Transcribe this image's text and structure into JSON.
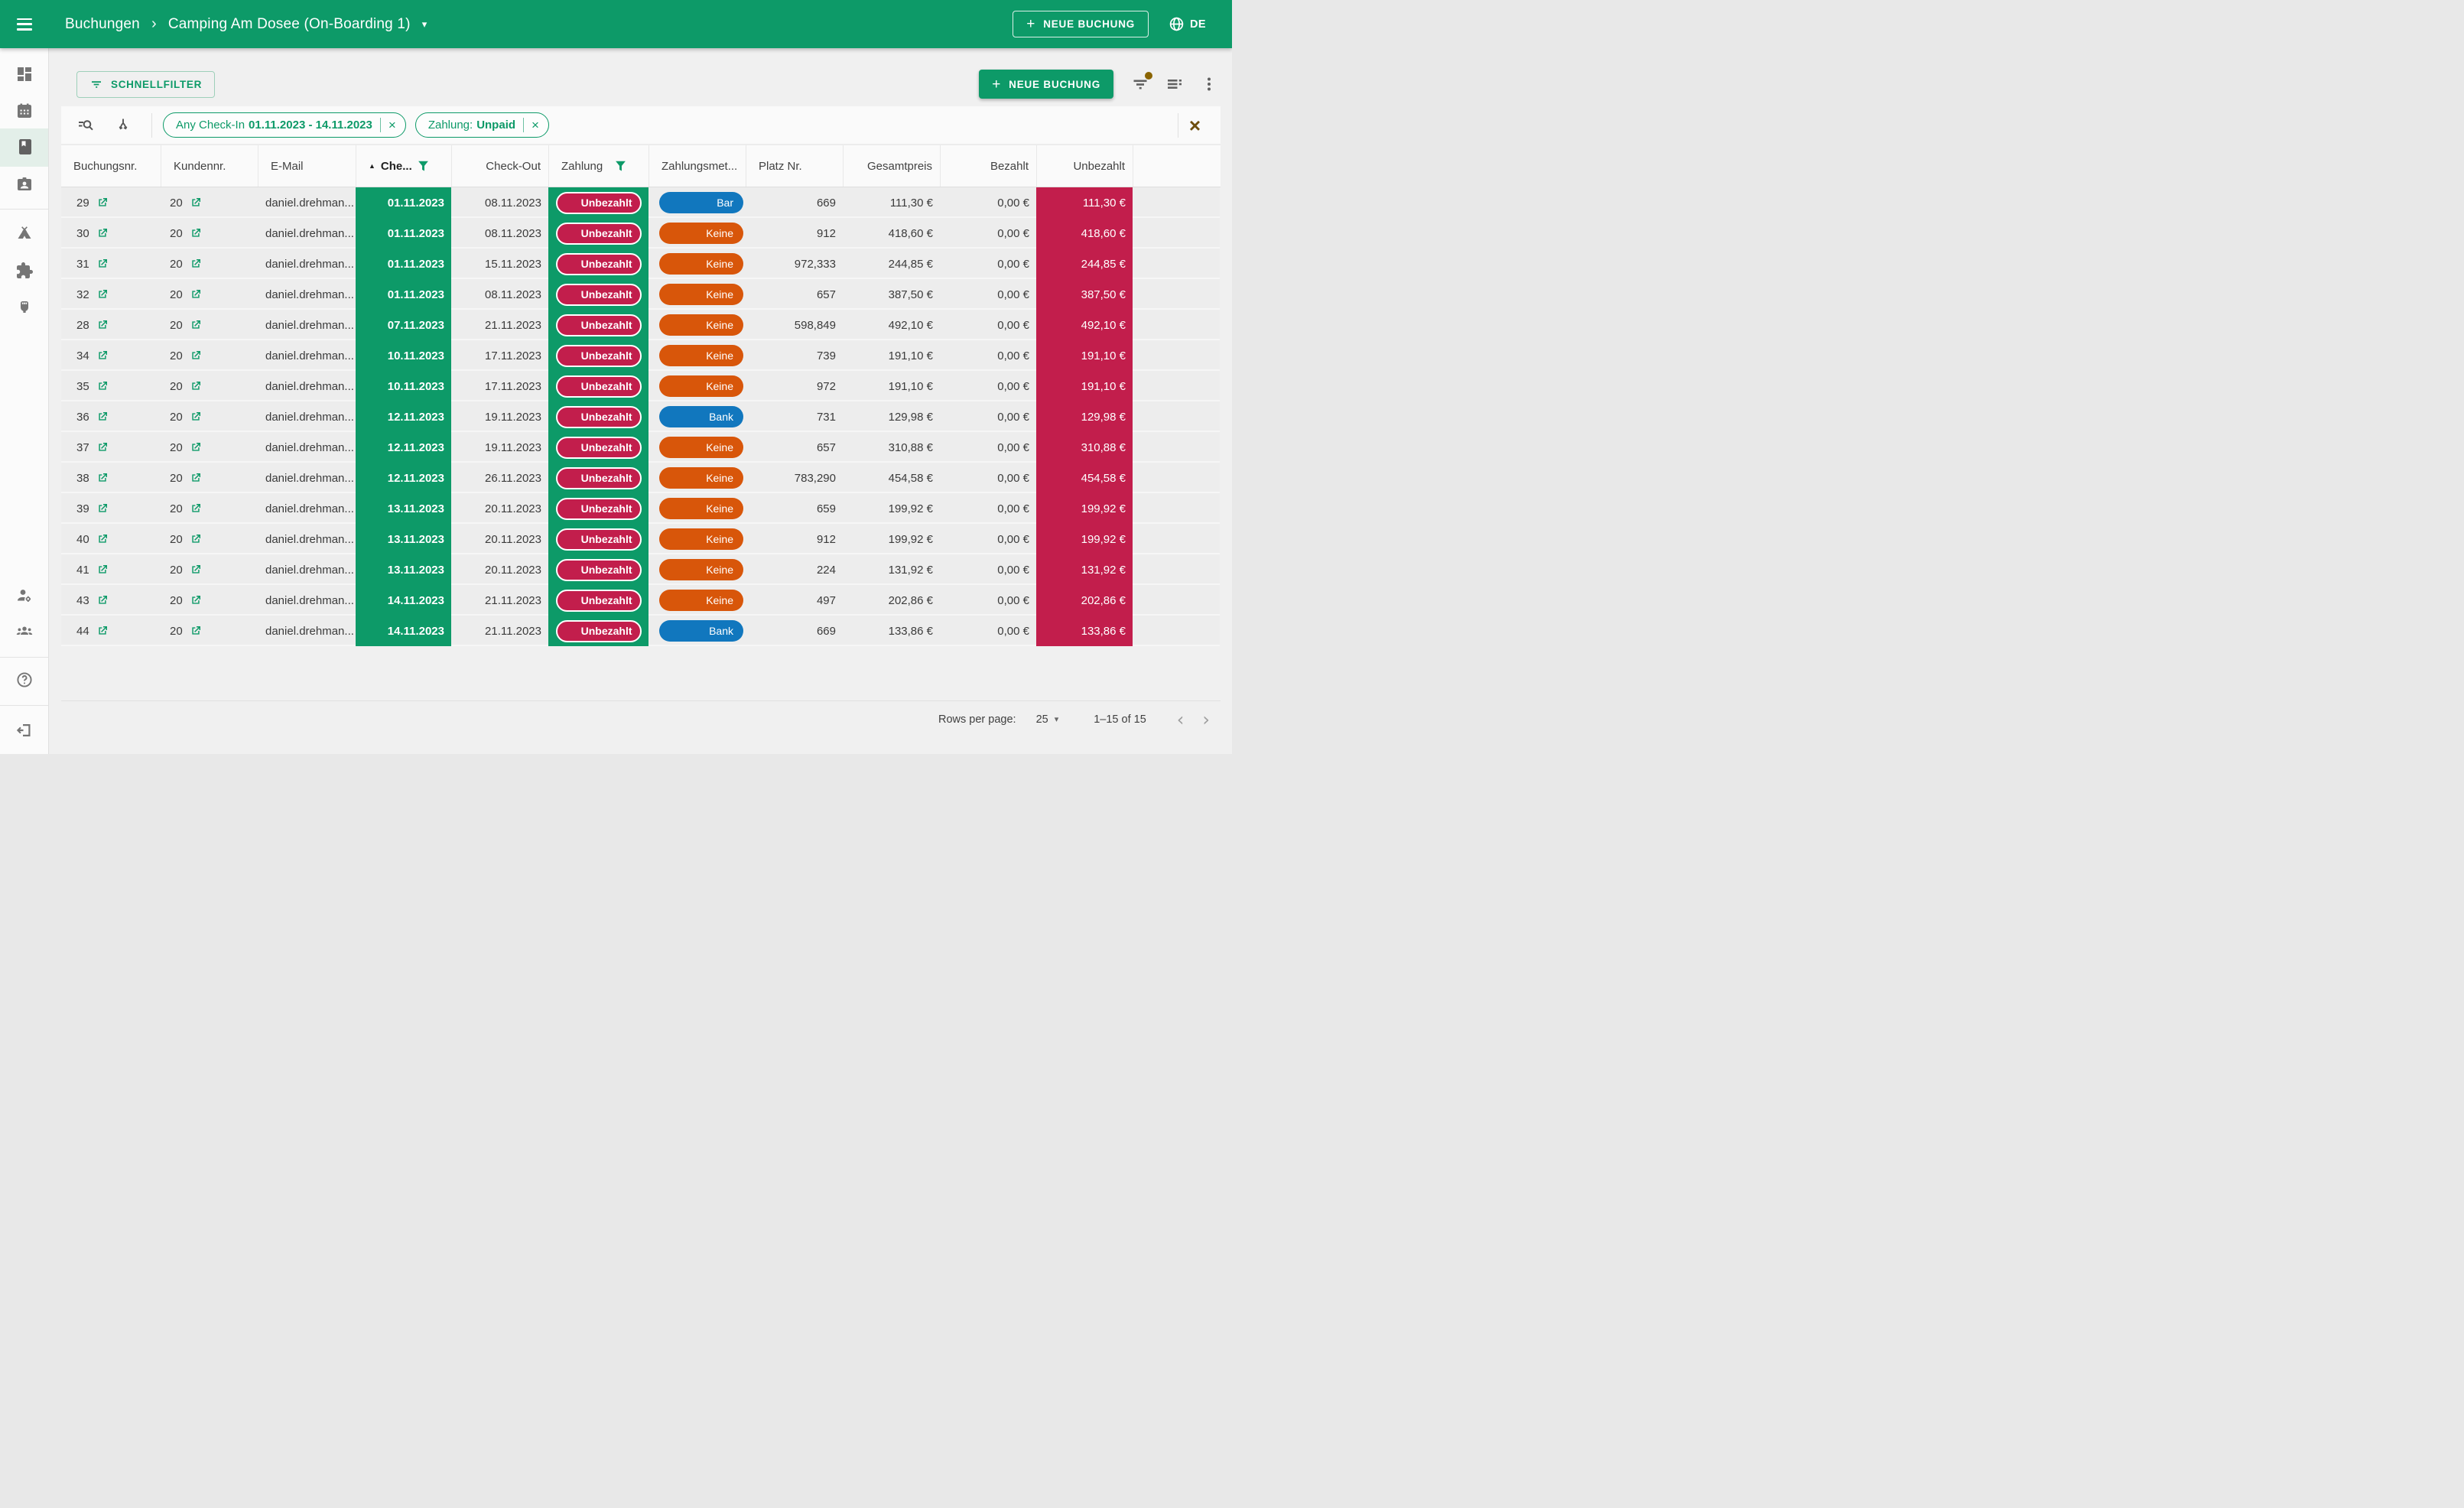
{
  "app_bar": {
    "breadcrumb": {
      "root": "Buchungen",
      "separator": "›",
      "current": "Camping Am Dosee (On-Boarding 1)",
      "caret": "▾"
    },
    "new_booking_label": "NEUE BUCHUNG",
    "plus": "+",
    "language": "DE"
  },
  "toolbar": {
    "quick_filter_label": "SCHNELLFILTER",
    "new_booking_label": "NEUE BUCHUNG",
    "plus": "+",
    "icons": [
      "filter-list-icon",
      "table-columns-icon",
      "kebab-menu-icon"
    ]
  },
  "filter_bar": {
    "icons": [
      "deep-search-icon",
      "group-split-icon"
    ],
    "chips": [
      {
        "label": "Any Check-In",
        "value": "01.11.2023 - 14.11.2023",
        "close": "×"
      },
      {
        "label": "Zahlung:",
        "value": "Unpaid",
        "close": "×"
      }
    ],
    "clear_all": "×"
  },
  "sidebar": {
    "items": [
      "dashboard-icon",
      "calendar-icon",
      "bookings-book-icon",
      "guests-contact-icon",
      "campsite-tent-icon",
      "integrations-puzzle-icon",
      "power-plug-icon",
      "account-settings-icon",
      "team-icon",
      "help-icon",
      "logout-icon"
    ],
    "active_item": "bookings-book-icon"
  },
  "table": {
    "headers": {
      "sort_arrow": "▲",
      "booking_no": "Buchungsnr.",
      "customer_no": "Kundennr.",
      "email": "E-Mail",
      "check_in": "Che...",
      "check_out": "Check-Out",
      "payment": "Zahlung",
      "payment_method": "Zahlungsmet...",
      "pitch_no": "Platz Nr.",
      "total": "Gesamtpreis",
      "paid": "Bezahlt",
      "unpaid": "Unbezahlt"
    },
    "rows": [
      {
        "booking_no": "29",
        "customer_no": "20",
        "email": "daniel.drehman...",
        "check_in": "01.11.2023",
        "check_out": "08.11.2023",
        "payment_status": "Unbezahlt",
        "payment_method": "Bar",
        "pitch_no": "669",
        "total": "111,30 €",
        "paid": "0,00 €",
        "unpaid": "111,30 €"
      },
      {
        "booking_no": "30",
        "customer_no": "20",
        "email": "daniel.drehman...",
        "check_in": "01.11.2023",
        "check_out": "08.11.2023",
        "payment_status": "Unbezahlt",
        "payment_method": "Keine",
        "pitch_no": "912",
        "total": "418,60 €",
        "paid": "0,00 €",
        "unpaid": "418,60 €"
      },
      {
        "booking_no": "31",
        "customer_no": "20",
        "email": "daniel.drehman...",
        "check_in": "01.11.2023",
        "check_out": "15.11.2023",
        "payment_status": "Unbezahlt",
        "payment_method": "Keine",
        "pitch_no": "972,333",
        "total": "244,85 €",
        "paid": "0,00 €",
        "unpaid": "244,85 €"
      },
      {
        "booking_no": "32",
        "customer_no": "20",
        "email": "daniel.drehman...",
        "check_in": "01.11.2023",
        "check_out": "08.11.2023",
        "payment_status": "Unbezahlt",
        "payment_method": "Keine",
        "pitch_no": "657",
        "total": "387,50 €",
        "paid": "0,00 €",
        "unpaid": "387,50 €"
      },
      {
        "booking_no": "28",
        "customer_no": "20",
        "email": "daniel.drehman...",
        "check_in": "07.11.2023",
        "check_out": "21.11.2023",
        "payment_status": "Unbezahlt",
        "payment_method": "Keine",
        "pitch_no": "598,849",
        "total": "492,10 €",
        "paid": "0,00 €",
        "unpaid": "492,10 €"
      },
      {
        "booking_no": "34",
        "customer_no": "20",
        "email": "daniel.drehman...",
        "check_in": "10.11.2023",
        "check_out": "17.11.2023",
        "payment_status": "Unbezahlt",
        "payment_method": "Keine",
        "pitch_no": "739",
        "total": "191,10 €",
        "paid": "0,00 €",
        "unpaid": "191,10 €"
      },
      {
        "booking_no": "35",
        "customer_no": "20",
        "email": "daniel.drehman...",
        "check_in": "10.11.2023",
        "check_out": "17.11.2023",
        "payment_status": "Unbezahlt",
        "payment_method": "Keine",
        "pitch_no": "972",
        "total": "191,10 €",
        "paid": "0,00 €",
        "unpaid": "191,10 €"
      },
      {
        "booking_no": "36",
        "customer_no": "20",
        "email": "daniel.drehman...",
        "check_in": "12.11.2023",
        "check_out": "19.11.2023",
        "payment_status": "Unbezahlt",
        "payment_method": "Bank",
        "pitch_no": "731",
        "total": "129,98 €",
        "paid": "0,00 €",
        "unpaid": "129,98 €"
      },
      {
        "booking_no": "37",
        "customer_no": "20",
        "email": "daniel.drehman...",
        "check_in": "12.11.2023",
        "check_out": "19.11.2023",
        "payment_status": "Unbezahlt",
        "payment_method": "Keine",
        "pitch_no": "657",
        "total": "310,88 €",
        "paid": "0,00 €",
        "unpaid": "310,88 €"
      },
      {
        "booking_no": "38",
        "customer_no": "20",
        "email": "daniel.drehman...",
        "check_in": "12.11.2023",
        "check_out": "26.11.2023",
        "payment_status": "Unbezahlt",
        "payment_method": "Keine",
        "pitch_no": "783,290",
        "total": "454,58 €",
        "paid": "0,00 €",
        "unpaid": "454,58 €"
      },
      {
        "booking_no": "39",
        "customer_no": "20",
        "email": "daniel.drehman...",
        "check_in": "13.11.2023",
        "check_out": "20.11.2023",
        "payment_status": "Unbezahlt",
        "payment_method": "Keine",
        "pitch_no": "659",
        "total": "199,92 €",
        "paid": "0,00 €",
        "unpaid": "199,92 €"
      },
      {
        "booking_no": "40",
        "customer_no": "20",
        "email": "daniel.drehman...",
        "check_in": "13.11.2023",
        "check_out": "20.11.2023",
        "payment_status": "Unbezahlt",
        "payment_method": "Keine",
        "pitch_no": "912",
        "total": "199,92 €",
        "paid": "0,00 €",
        "unpaid": "199,92 €"
      },
      {
        "booking_no": "41",
        "customer_no": "20",
        "email": "daniel.drehman...",
        "check_in": "13.11.2023",
        "check_out": "20.11.2023",
        "payment_status": "Unbezahlt",
        "payment_method": "Keine",
        "pitch_no": "224",
        "total": "131,92 €",
        "paid": "0,00 €",
        "unpaid": "131,92 €"
      },
      {
        "booking_no": "43",
        "customer_no": "20",
        "email": "daniel.drehman...",
        "check_in": "14.11.2023",
        "check_out": "21.11.2023",
        "payment_status": "Unbezahlt",
        "payment_method": "Keine",
        "pitch_no": "497",
        "total": "202,86 €",
        "paid": "0,00 €",
        "unpaid": "202,86 €"
      },
      {
        "booking_no": "44",
        "customer_no": "20",
        "email": "daniel.drehman...",
        "check_in": "14.11.2023",
        "check_out": "21.11.2023",
        "payment_status": "Unbezahlt",
        "payment_method": "Bank",
        "pitch_no": "669",
        "total": "133,86 €",
        "paid": "0,00 €",
        "unpaid": "133,86 €"
      }
    ]
  },
  "pagination": {
    "rows_per_page_label": "Rows per page:",
    "rows_per_page_value": "25",
    "caret": "▾",
    "range": "1–15 of 15",
    "prev": "‹",
    "next": "›"
  },
  "colors": {
    "brand_green": "#0d9a68",
    "unpaid_red": "#c21e4c",
    "amber": "#6f4f0e",
    "method_colors": {
      "Bar": "#1177be",
      "Bank": "#1177be",
      "Keine": "#d8560a"
    }
  }
}
